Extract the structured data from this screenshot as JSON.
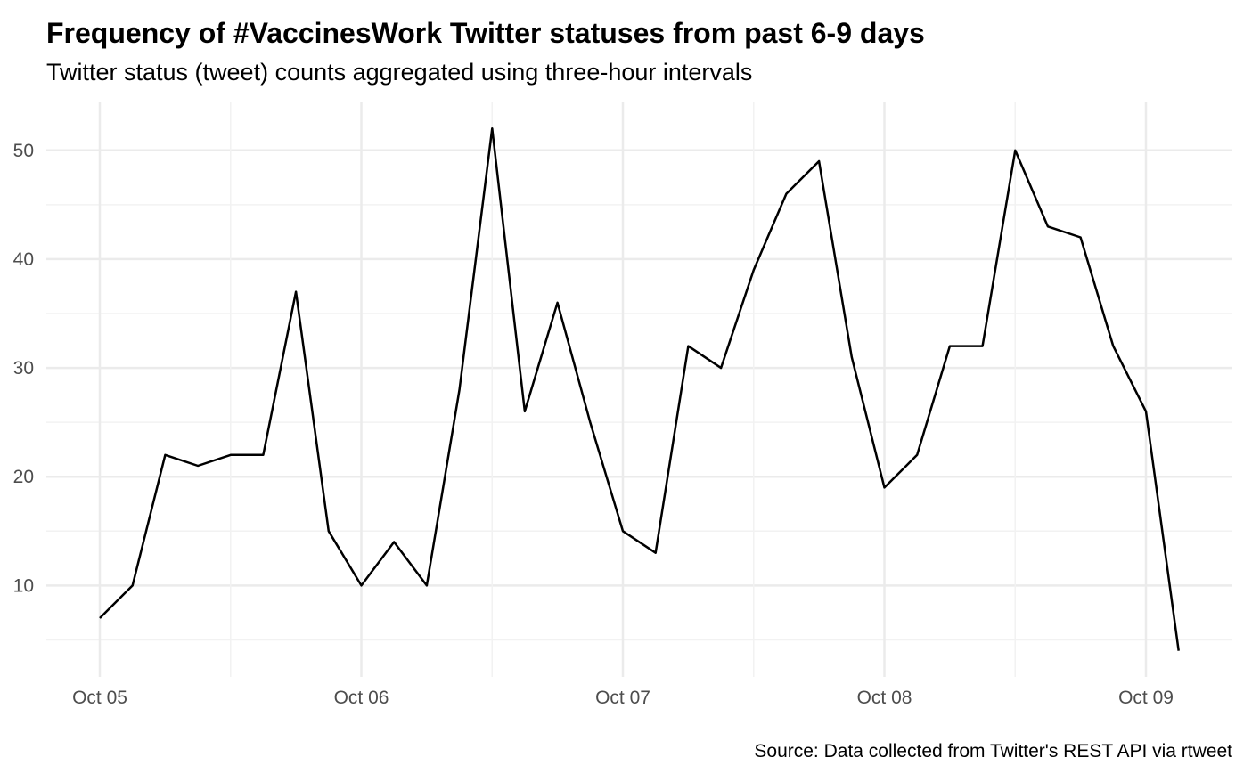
{
  "chart_data": {
    "type": "line",
    "title": "Frequency of #VaccinesWork Twitter statuses from past 6-9 days",
    "subtitle": "Twitter status (tweet) counts aggregated using three-hour intervals",
    "caption": "Source: Data collected from Twitter's REST API via rtweet",
    "xlabel": "",
    "ylabel": "",
    "x_ticks": [
      "Oct 05",
      "Oct 06",
      "Oct 07",
      "Oct 08",
      "Oct 09"
    ],
    "y_ticks": [
      10,
      20,
      30,
      40,
      50
    ],
    "ylim": [
      1.6,
      54.4
    ],
    "grid": true,
    "line_color": "#000000",
    "series": [
      {
        "x": [
          "Oct 05 00:00",
          "Oct 05 03:00",
          "Oct 05 06:00",
          "Oct 05 09:00",
          "Oct 05 12:00",
          "Oct 05 15:00",
          "Oct 05 18:00",
          "Oct 05 21:00",
          "Oct 06 00:00",
          "Oct 06 03:00",
          "Oct 06 06:00",
          "Oct 06 09:00",
          "Oct 06 12:00",
          "Oct 06 15:00",
          "Oct 06 18:00",
          "Oct 06 21:00",
          "Oct 07 00:00",
          "Oct 07 03:00",
          "Oct 07 06:00",
          "Oct 07 09:00",
          "Oct 07 12:00",
          "Oct 07 15:00",
          "Oct 07 18:00",
          "Oct 07 21:00",
          "Oct 08 00:00",
          "Oct 08 03:00",
          "Oct 08 06:00",
          "Oct 08 09:00",
          "Oct 08 12:00",
          "Oct 08 15:00",
          "Oct 08 18:00",
          "Oct 08 21:00",
          "Oct 09 00:00",
          "Oct 09 03:00"
        ],
        "values": [
          7,
          10,
          22,
          21,
          22,
          22,
          37,
          15,
          10,
          14,
          10,
          28,
          52,
          26,
          36,
          25,
          15,
          13,
          32,
          30,
          39,
          46,
          49,
          31,
          19,
          22,
          32,
          32,
          50,
          43,
          42,
          32,
          26,
          4
        ]
      }
    ]
  }
}
